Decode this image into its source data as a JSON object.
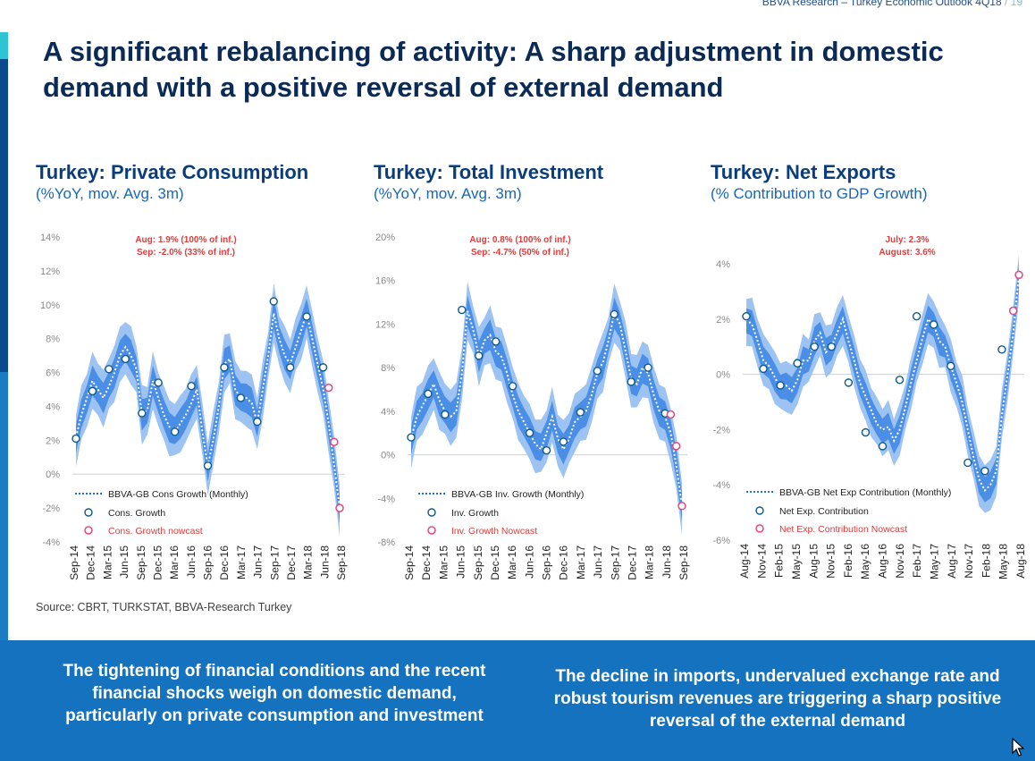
{
  "header": {
    "note": "BBVA Research – Turkey Economic Outlook 4Q18",
    "page": "/ 19"
  },
  "title": "A significant rebalancing of activity: A sharp adjustment in domestic demand with a positive reversal of external demand",
  "source": "Source: CBRT, TURKSTAT, BBVA-Research Turkey",
  "bottom": {
    "left": "The tightening of financial conditions and the recent financial shocks weigh on domestic demand, particularly on private consumption and investment",
    "right": "The decline in imports, undervalued exchange rate and robust tourism revenues are triggering a sharp positive reversal of the external demand"
  },
  "colors": {
    "dark_blue": "#0b2a56",
    "accent": "#1472be",
    "band_outer": "#9dc3f2",
    "band_inner": "#4b8ee6",
    "marker": "#16a3c9",
    "nowcast": "#e8457c",
    "annotation": "#e03c3c"
  },
  "chart_data": [
    {
      "type": "line",
      "title": "Turkey: Private Consumption",
      "subtitle": "(%YoY, mov. Avg. 3m)",
      "ylim": [
        -4,
        14
      ],
      "yticks": [
        "14%",
        "12%",
        "10%",
        "8%",
        "6%",
        "4%",
        "2%",
        "0%",
        "-2%",
        "-4%"
      ],
      "ytick_values": [
        14,
        12,
        10,
        8,
        6,
        4,
        2,
        0,
        -2,
        -4
      ],
      "xticks": [
        "Sep-14",
        "Dec-14",
        "Mar-15",
        "Jun-15",
        "Sep-15",
        "Dec-15",
        "Mar-16",
        "Jun-16",
        "Sep-16",
        "Dec-16",
        "Mar-17",
        "Jun-17",
        "Sep-17",
        "Dec-17",
        "Mar-18",
        "Jun-18",
        "Sep-18"
      ],
      "n_months": 49,
      "annotation": [
        "Aug: 1.9% (100% of inf.)",
        "Sep: -2.0% (33% of inf.)"
      ],
      "legend": [
        "BBVA-GB Cons Growth (Monthly)",
        "Cons. Growth",
        "Cons. Growth nowcast"
      ],
      "series": [
        {
          "name": "BBVA-GB Cons Growth (Monthly)",
          "values": [
            2.2,
            3.5,
            4.5,
            5.5,
            5.0,
            4.5,
            5.2,
            6.0,
            7.0,
            7.5,
            7.0,
            6.2,
            3.5,
            3.8,
            5.5,
            4.5,
            3.5,
            2.8,
            2.5,
            3.0,
            3.5,
            4.2,
            5.0,
            2.5,
            0.5,
            2.0,
            4.0,
            6.5,
            6.8,
            5.0,
            4.5,
            4.5,
            4.2,
            3.0,
            5.0,
            7.0,
            9.5,
            8.0,
            7.0,
            6.5,
            7.5,
            8.5,
            9.5,
            8.0,
            6.5,
            5.0,
            3.0,
            0.5,
            -2.0
          ]
        },
        {
          "name": "Cons. Growth",
          "x": [
            0,
            3,
            6,
            9,
            12,
            15,
            18,
            21,
            24,
            27,
            30,
            33,
            36,
            39,
            42,
            45
          ],
          "values": [
            2.1,
            4.9,
            6.2,
            6.8,
            3.6,
            5.4,
            2.5,
            5.2,
            0.5,
            6.3,
            4.5,
            3.1,
            10.2,
            6.3,
            9.3,
            6.3
          ]
        },
        {
          "name": "Cons. Growth nowcast",
          "x": [
            46,
            47,
            48
          ],
          "values": [
            5.1,
            1.9,
            -2.0
          ]
        }
      ]
    },
    {
      "type": "line",
      "title": "Turkey: Total Investment",
      "subtitle": "(%YoY, mov. Avg. 3m)",
      "ylim": [
        -8,
        20
      ],
      "yticks": [
        "20%",
        "16%",
        "12%",
        "8%",
        "4%",
        "0%",
        "-4%",
        "-8%"
      ],
      "ytick_values": [
        20,
        16,
        12,
        8,
        4,
        0,
        -4,
        -8
      ],
      "xticks": [
        "Sep-14",
        "Dec-14",
        "Mar-15",
        "Jun-15",
        "Sep-15",
        "Dec-15",
        "Mar-16",
        "Jun-16",
        "Sep-16",
        "Dec-16",
        "Mar-17",
        "Jun-17",
        "Sep-17",
        "Dec-17",
        "Mar-18",
        "Jun-18",
        "Sep-18"
      ],
      "n_months": 49,
      "annotation": [
        "Aug: 0.8% (100% of inf.)",
        "Sep: -4.7% (50% of inf.)"
      ],
      "legend": [
        "BBVA-GB Inv. Growth (Monthly)",
        "Inv. Growth",
        "Inv. Growth Nowcast"
      ],
      "series": [
        {
          "name": "BBVA-GB Inv. Growth (Monthly)",
          "values": [
            1.5,
            3.5,
            4.5,
            5.5,
            6.5,
            5.0,
            4.0,
            3.5,
            4.0,
            7.5,
            13.2,
            11.5,
            9.0,
            10.5,
            11.0,
            9.5,
            9.0,
            7.5,
            5.5,
            4.0,
            3.0,
            2.0,
            1.0,
            0.5,
            2.0,
            3.5,
            1.5,
            0.5,
            1.5,
            3.0,
            3.5,
            4.0,
            5.5,
            7.5,
            8.5,
            10.5,
            13.0,
            12.0,
            9.5,
            7.0,
            6.5,
            8.0,
            7.5,
            5.5,
            4.0,
            3.5,
            2.0,
            -1.0,
            -4.7
          ]
        },
        {
          "name": "Inv. Growth",
          "x": [
            0,
            3,
            6,
            9,
            12,
            15,
            18,
            21,
            24,
            27,
            30,
            33,
            36,
            39,
            42,
            45
          ],
          "values": [
            1.6,
            5.6,
            3.7,
            13.3,
            9.1,
            10.4,
            6.3,
            2.0,
            0.4,
            1.2,
            3.9,
            7.7,
            12.9,
            6.7,
            8.0,
            3.8
          ]
        },
        {
          "name": "Inv. Growth Nowcast",
          "x": [
            46,
            47,
            48
          ],
          "values": [
            3.7,
            0.8,
            -4.7
          ]
        }
      ]
    },
    {
      "type": "line",
      "title": "Turkey: Net Exports",
      "subtitle": "(% Contribution to GDP Growth)",
      "ylim": [
        -6,
        4
      ],
      "yticks": [
        "4%",
        "2%",
        "0%",
        "-2%",
        "-4%",
        "-6%"
      ],
      "ytick_values": [
        4,
        2,
        0,
        -2,
        -4,
        -6
      ],
      "xticks": [
        "Aug-14",
        "Nov-14",
        "Feb-15",
        "May-15",
        "Aug-15",
        "Nov-15",
        "Feb-16",
        "May-16",
        "Aug-16",
        "Nov-16",
        "Feb-17",
        "May-17",
        "Aug-17",
        "Nov-17",
        "Feb-18",
        "May-18",
        "Aug-18"
      ],
      "n_months": 49,
      "annotation": [
        "July: 2.3%",
        "August: 3.6%"
      ],
      "legend": [
        "BBVA-GB Net Exp Contribution (Monthly)",
        "Net Exp. Contribution",
        "Net Exp. Contribution Nowcast"
      ],
      "series": [
        {
          "name": "BBVA-GB Net Exp Contribution (Monthly)",
          "values": [
            2.0,
            1.8,
            1.2,
            0.5,
            0.3,
            -0.1,
            -0.5,
            -0.4,
            -0.6,
            -0.2,
            0.5,
            0.5,
            1.2,
            1.5,
            0.8,
            1.0,
            1.5,
            2.0,
            1.2,
            0.5,
            -0.3,
            -0.8,
            -1.3,
            -1.8,
            -2.0,
            -1.9,
            -2.4,
            -2.0,
            -1.2,
            -0.3,
            0.5,
            1.3,
            2.0,
            1.8,
            1.2,
            1.0,
            0.3,
            -0.3,
            -1.0,
            -2.0,
            -3.0,
            -3.8,
            -4.2,
            -4.0,
            -3.5,
            -1.5,
            0.0,
            1.5,
            3.6
          ]
        },
        {
          "name": "Net Exp. Contribution",
          "x": [
            0,
            3,
            6,
            9,
            12,
            15,
            18,
            21,
            24,
            27,
            30,
            33,
            36,
            39,
            42,
            45
          ],
          "values": [
            2.1,
            0.2,
            -0.4,
            0.4,
            1.0,
            1.0,
            -0.3,
            -2.1,
            -2.6,
            -0.2,
            2.1,
            1.8,
            0.3,
            -3.2,
            -3.5,
            0.9
          ]
        },
        {
          "name": "Net Exp. Contribution Nowcast",
          "x": [
            47,
            48
          ],
          "values": [
            2.3,
            3.6
          ]
        }
      ]
    }
  ]
}
